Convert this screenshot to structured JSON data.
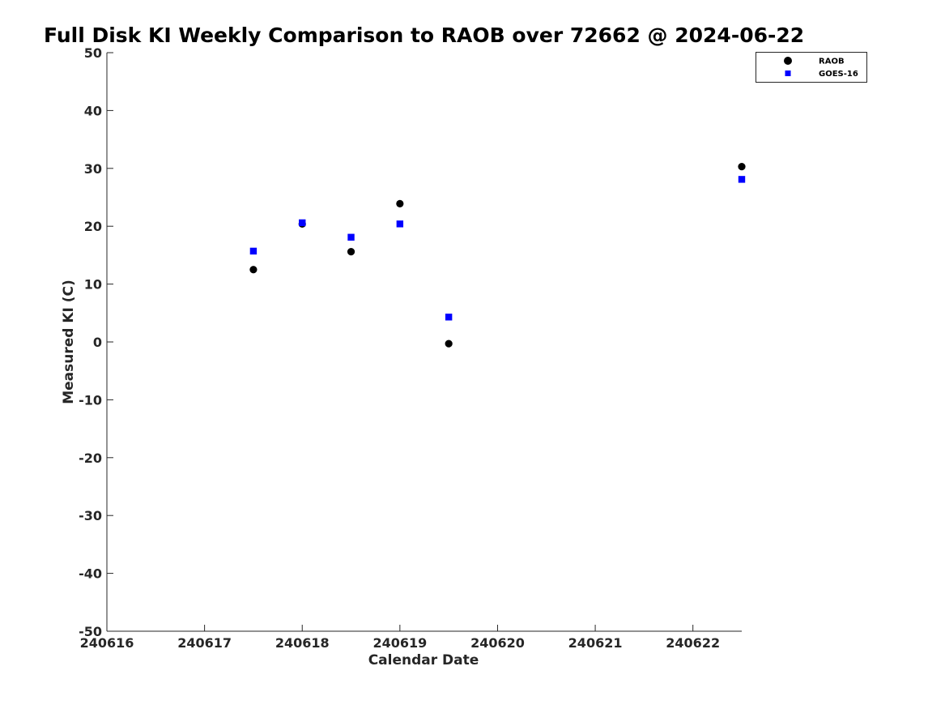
{
  "chart_data": {
    "type": "scatter",
    "title": "Full Disk KI Weekly Comparison to RAOB over 72662 @ 2024-06-22",
    "xlabel": "Calendar Date",
    "ylabel": "Measured KI (C)",
    "xlim": [
      240616,
      240622.5
    ],
    "ylim": [
      -50,
      50
    ],
    "x_ticks": [
      240616,
      240617,
      240618,
      240619,
      240620,
      240621,
      240622
    ],
    "x_tick_labels": [
      "240616",
      "240617",
      "240618",
      "240619",
      "240620",
      "240621",
      "240622"
    ],
    "y_ticks": [
      -50,
      -40,
      -30,
      -20,
      -10,
      0,
      10,
      20,
      30,
      40,
      50
    ],
    "y_tick_labels": [
      "-50",
      "-40",
      "-30",
      "-20",
      "-10",
      "0",
      "10",
      "20",
      "30",
      "40",
      "50"
    ],
    "grid": false,
    "legend_position": "top-right",
    "series": [
      {
        "name": "RAOB",
        "marker": "circle",
        "color": "#000000",
        "x": [
          240617.5,
          240618.0,
          240618.5,
          240619.0,
          240619.5,
          240622.5
        ],
        "y": [
          12.5,
          20.4,
          15.6,
          23.9,
          -0.3,
          30.3
        ]
      },
      {
        "name": "GOES-16",
        "marker": "square",
        "color": "#0000ff",
        "x": [
          240617.5,
          240618.0,
          240618.5,
          240619.0,
          240619.5,
          240622.5
        ],
        "y": [
          15.7,
          20.6,
          18.1,
          20.4,
          4.3,
          28.1
        ]
      }
    ]
  }
}
